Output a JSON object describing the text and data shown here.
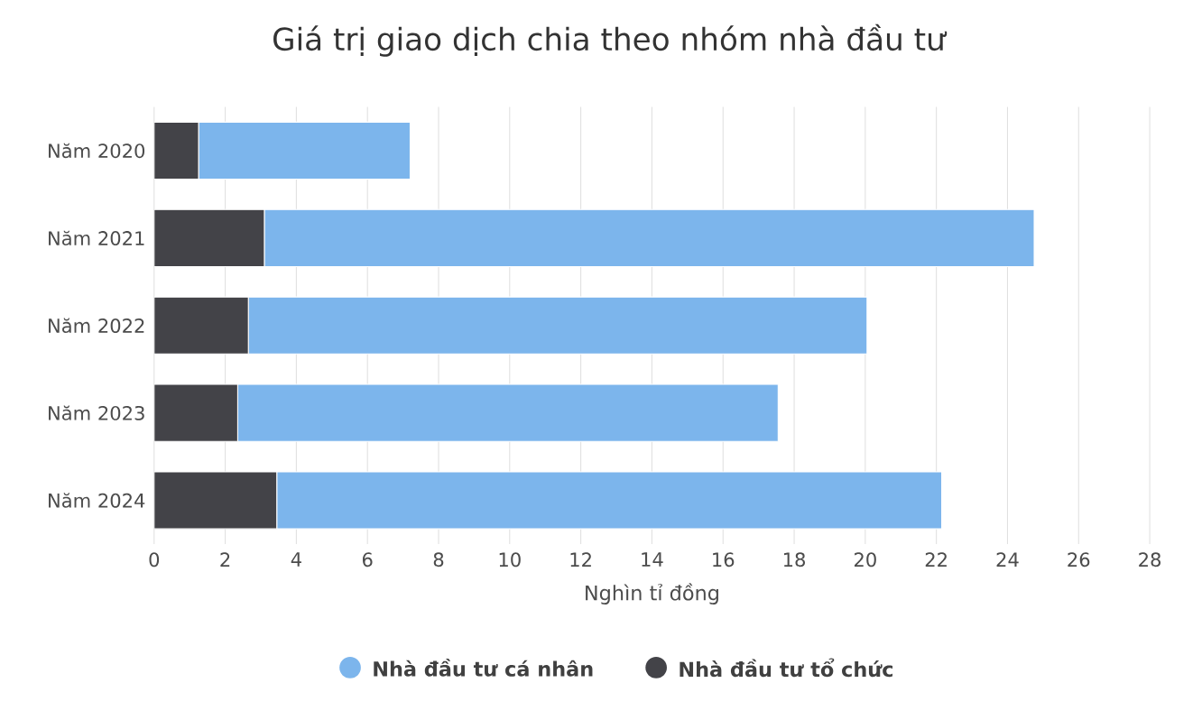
{
  "chart_data": {
    "type": "bar",
    "orientation": "horizontal",
    "stacked": true,
    "title": "Giá trị giao dịch chia theo nhóm nhà đầu tư",
    "xlabel": "Nghìn tỉ đồng",
    "categories": [
      "Năm 2020",
      "Năm 2021",
      "Năm 2022",
      "Năm 2023",
      "Năm 2024"
    ],
    "series": [
      {
        "name": "Nhà đầu tư tổ chức",
        "color": "#434348",
        "values": [
          1.25,
          3.1,
          2.65,
          2.35,
          3.45
        ]
      },
      {
        "name": "Nhà đầu tư cá nhân",
        "color": "#7cb5ec",
        "values": [
          5.95,
          21.65,
          17.4,
          15.2,
          18.7
        ]
      }
    ],
    "xlim": [
      0,
      28
    ],
    "xticks": [
      0,
      2,
      4,
      6,
      8,
      10,
      12,
      14,
      16,
      18,
      20,
      22,
      24,
      26,
      28
    ],
    "grid": "x",
    "legend": "bottom"
  }
}
